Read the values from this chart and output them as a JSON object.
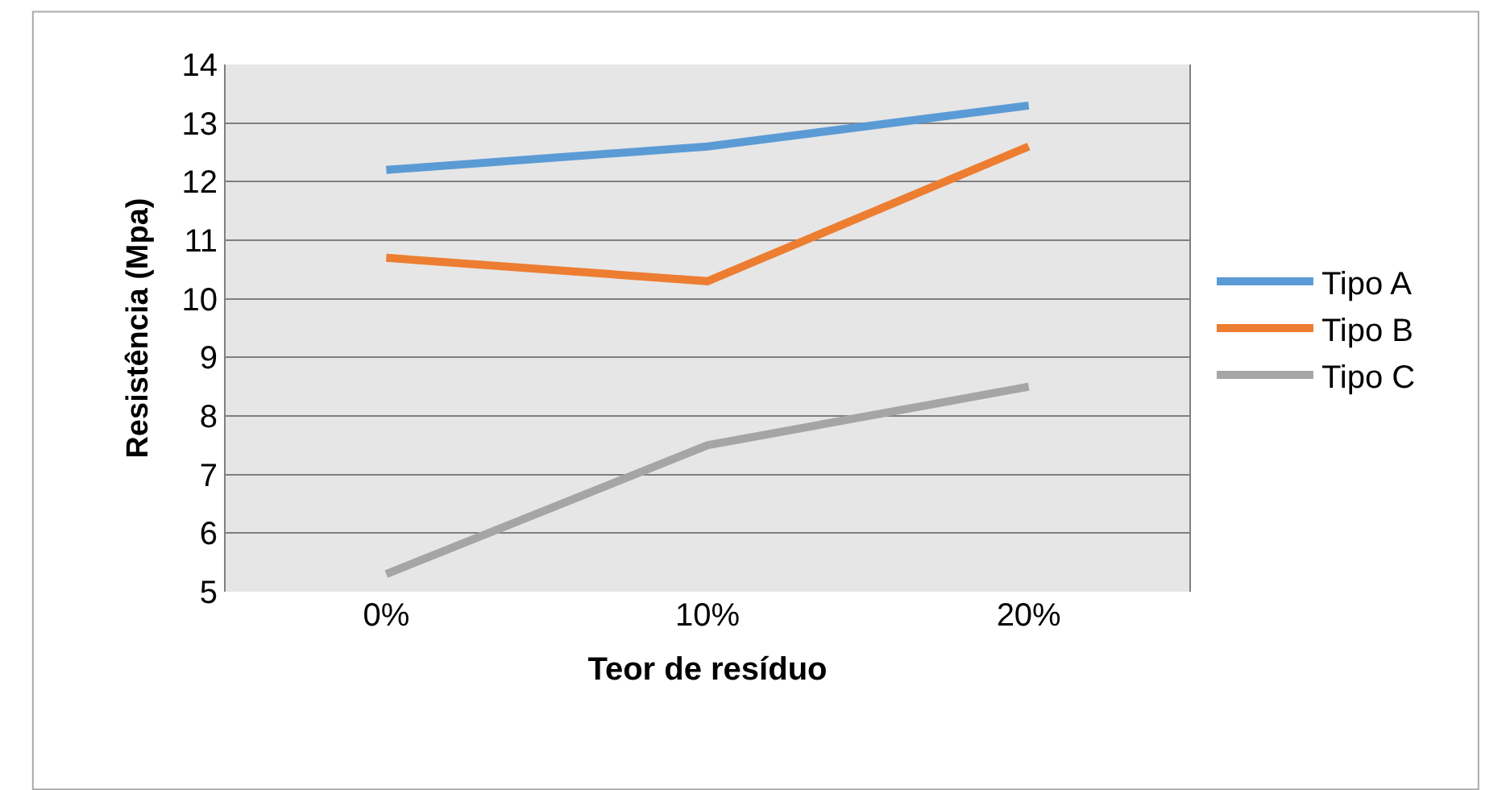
{
  "chart_data": {
    "type": "line",
    "xlabel": "Teor de resíduo",
    "ylabel": "Resistência (Mpa)",
    "categories": [
      "0%",
      "10%",
      "20%"
    ],
    "series": [
      {
        "name": "Tipo A",
        "color": "#5b9bd5",
        "values": [
          12.2,
          12.6,
          13.3
        ]
      },
      {
        "name": "Tipo B",
        "color": "#ed7d31",
        "values": [
          10.7,
          10.3,
          12.6
        ]
      },
      {
        "name": "Tipo C",
        "color": "#a5a5a5",
        "values": [
          5.3,
          7.5,
          8.5
        ]
      }
    ],
    "ylim": [
      5,
      14
    ],
    "yticks": [
      5,
      6,
      7,
      8,
      9,
      10,
      11,
      12,
      13,
      14
    ],
    "grid": "y",
    "legend": "right",
    "marker": "none",
    "line_style": "solid"
  }
}
